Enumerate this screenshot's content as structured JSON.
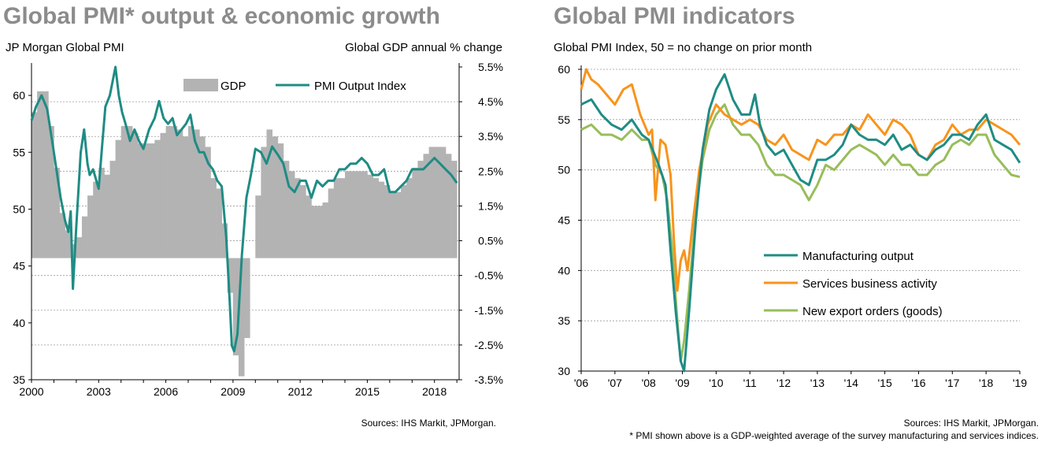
{
  "chart_data": [
    {
      "type": "bar+line",
      "title": "Global PMI* output & economic growth",
      "left_axis_label": "JP Morgan Global  PMI",
      "right_axis_label": "Global  GDP annual % change",
      "source": "Sources: IHS Markit, JPMorgan.",
      "ylim_left": [
        35,
        62.5
      ],
      "yticks_left": [
        "35",
        "40",
        "45",
        "50",
        "55",
        "60"
      ],
      "ylim_right": [
        -3.5,
        5.5
      ],
      "yticks_right": [
        "5.5%",
        "4.5%",
        "3.5%",
        "2.5%",
        "1.5%",
        "0.5%",
        "-0.5%",
        "-1.5%",
        "-2.5%",
        "-3.5%"
      ],
      "x_range": [
        2000,
        2019.1
      ],
      "xticks": [
        "2000",
        "2003",
        "2006",
        "2009",
        "2012",
        "2015",
        "2018"
      ],
      "legend": [
        "GDP",
        "PMI Output Index"
      ],
      "legend_position": "top-right",
      "colors": {
        "gdp": "#b3b3b3",
        "pmi": "#1f8c84"
      },
      "series": [
        {
          "name": "GDP",
          "kind": "bar",
          "x": [
            2000.0,
            2000.25,
            2000.5,
            2000.75,
            2001.0,
            2001.25,
            2001.5,
            2001.75,
            2002.0,
            2002.25,
            2002.5,
            2002.75,
            2003.0,
            2003.25,
            2003.5,
            2003.75,
            2004.0,
            2004.25,
            2004.5,
            2004.75,
            2005.0,
            2005.25,
            2005.5,
            2005.75,
            2006.0,
            2006.25,
            2006.5,
            2006.75,
            2007.0,
            2007.25,
            2007.5,
            2007.75,
            2008.0,
            2008.25,
            2008.5,
            2008.75,
            2009.0,
            2009.25,
            2009.5,
            2009.75,
            2010.0,
            2010.25,
            2010.5,
            2010.75,
            2011.0,
            2011.25,
            2011.5,
            2011.75,
            2012.0,
            2012.25,
            2012.5,
            2012.75,
            2013.0,
            2013.25,
            2013.5,
            2013.75,
            2014.0,
            2014.25,
            2014.5,
            2014.75,
            2015.0,
            2015.25,
            2015.5,
            2015.75,
            2016.0,
            2016.25,
            2016.5,
            2016.75,
            2017.0,
            2017.25,
            2017.5,
            2017.75,
            2018.0,
            2018.25,
            2018.5,
            2018.75
          ],
          "values": [
            4.2,
            4.8,
            4.8,
            3.8,
            2.6,
            1.3,
            0.8,
            0.4,
            0.6,
            1.2,
            1.8,
            2.2,
            2.6,
            2.4,
            2.8,
            3.4,
            3.8,
            3.8,
            3.6,
            3.3,
            3.3,
            3.3,
            3.4,
            3.6,
            3.8,
            3.8,
            3.7,
            3.5,
            3.8,
            3.7,
            3.5,
            3.2,
            2.3,
            2.0,
            1.0,
            -1.0,
            -2.8,
            -3.4,
            -2.3,
            0.0,
            1.8,
            3.2,
            3.7,
            3.5,
            3.3,
            2.8,
            2.5,
            2.3,
            2.1,
            1.8,
            1.5,
            1.5,
            1.6,
            2.0,
            2.3,
            2.3,
            2.5,
            2.5,
            2.5,
            2.5,
            2.4,
            2.3,
            2.2,
            2.1,
            1.9,
            1.9,
            2.1,
            2.3,
            2.6,
            2.8,
            3.0,
            3.2,
            3.2,
            3.2,
            3.0,
            2.8
          ]
        },
        {
          "name": "PMI Output Index",
          "kind": "line",
          "x": [
            2000.0,
            2000.2,
            2000.45,
            2000.7,
            2001.0,
            2001.3,
            2001.5,
            2001.65,
            2001.75,
            2001.85,
            2002.0,
            2002.2,
            2002.35,
            2002.5,
            2002.6,
            2002.75,
            2003.0,
            2003.15,
            2003.3,
            2003.5,
            2003.75,
            2003.9,
            2004.05,
            2004.2,
            2004.4,
            2004.6,
            2004.8,
            2005.0,
            2005.25,
            2005.5,
            2005.7,
            2005.9,
            2006.1,
            2006.3,
            2006.5,
            2006.7,
            2006.9,
            2007.1,
            2007.3,
            2007.5,
            2007.7,
            2007.9,
            2008.1,
            2008.3,
            2008.5,
            2008.7,
            2008.85,
            2008.95,
            2009.05,
            2009.2,
            2009.4,
            2009.6,
            2009.8,
            2010.0,
            2010.25,
            2010.5,
            2010.75,
            2011.0,
            2011.25,
            2011.5,
            2011.75,
            2012.0,
            2012.25,
            2012.5,
            2012.75,
            2013.0,
            2013.25,
            2013.5,
            2013.75,
            2014.0,
            2014.25,
            2014.5,
            2014.75,
            2015.0,
            2015.25,
            2015.5,
            2015.75,
            2016.0,
            2016.25,
            2016.5,
            2016.75,
            2017.0,
            2017.25,
            2017.5,
            2017.75,
            2018.0,
            2018.25,
            2018.5,
            2018.75,
            2019.0
          ],
          "values": [
            57.8,
            59.0,
            60.0,
            58.8,
            55.0,
            51.0,
            49.0,
            48.0,
            49.8,
            43.0,
            48.5,
            55.0,
            57.0,
            54.0,
            53.0,
            53.5,
            51.8,
            55.5,
            59.0,
            60.0,
            62.5,
            60.0,
            58.5,
            57.5,
            56.0,
            57.0,
            56.0,
            55.3,
            57.0,
            58.0,
            59.5,
            58.0,
            57.5,
            58.0,
            56.5,
            57.0,
            57.5,
            58.3,
            56.0,
            55.0,
            55.0,
            54.0,
            53.5,
            52.5,
            52.0,
            47.5,
            42.0,
            38.0,
            37.5,
            39.0,
            46.0,
            51.0,
            53.0,
            55.3,
            55.0,
            54.0,
            55.5,
            54.8,
            54.0,
            52.0,
            51.5,
            52.5,
            52.5,
            51.0,
            52.5,
            52.0,
            52.5,
            52.5,
            53.5,
            53.5,
            54.0,
            54.0,
            54.5,
            54.0,
            53.0,
            53.0,
            53.5,
            51.5,
            51.5,
            52.0,
            52.5,
            53.5,
            53.5,
            53.5,
            54.0,
            54.5,
            54.0,
            53.5,
            53.0,
            52.3
          ]
        }
      ]
    },
    {
      "type": "line",
      "title": "Global PMI indicators",
      "axis_label": "Global  PMI Index, 50 = no change on prior month",
      "source": "Sources: IHS Markit, JPMorgan.",
      "ylim": [
        30,
        60
      ],
      "yticks": [
        "30",
        "35",
        "40",
        "45",
        "50",
        "55",
        "60"
      ],
      "x_range": [
        2006,
        2019
      ],
      "xticks": [
        "'06",
        "'07",
        "'08",
        "'09",
        "'10",
        "'11",
        "'12",
        "'13",
        "'14",
        "'15",
        "'16",
        "'17",
        "'18",
        "'19"
      ],
      "legend_position": "center",
      "colors": {
        "manufacturing": "#1f8c84",
        "services": "#f7941d",
        "exports": "#98bd5a"
      },
      "series": [
        {
          "name": "Manufacturing output",
          "x": [
            2006.0,
            2006.3,
            2006.6,
            2006.9,
            2007.2,
            2007.5,
            2007.8,
            2008.0,
            2008.3,
            2008.5,
            2008.65,
            2008.8,
            2008.95,
            2009.05,
            2009.2,
            2009.4,
            2009.6,
            2009.8,
            2010.0,
            2010.25,
            2010.5,
            2010.75,
            2011.0,
            2011.15,
            2011.3,
            2011.5,
            2011.75,
            2012.0,
            2012.25,
            2012.5,
            2012.75,
            2013.0,
            2013.25,
            2013.5,
            2013.75,
            2014.0,
            2014.25,
            2014.5,
            2014.75,
            2015.0,
            2015.25,
            2015.5,
            2015.75,
            2016.0,
            2016.25,
            2016.5,
            2016.75,
            2017.0,
            2017.25,
            2017.5,
            2017.75,
            2018.0,
            2018.25,
            2018.5,
            2018.75,
            2019.0
          ],
          "values": [
            56.5,
            57.0,
            55.5,
            54.5,
            54.0,
            55.0,
            53.5,
            53.0,
            50.5,
            48.5,
            42.0,
            36.0,
            31.0,
            30.0,
            36.0,
            45.0,
            52.0,
            56.0,
            58.0,
            59.5,
            57.0,
            55.5,
            55.5,
            57.5,
            54.5,
            52.5,
            51.5,
            52.0,
            50.5,
            49.0,
            48.5,
            51.0,
            51.0,
            51.5,
            52.5,
            54.5,
            53.5,
            53.0,
            53.0,
            52.5,
            53.5,
            52.0,
            52.5,
            51.5,
            51.0,
            52.0,
            52.5,
            53.5,
            53.5,
            53.0,
            54.5,
            55.5,
            53.0,
            52.5,
            52.0,
            50.7
          ]
        },
        {
          "name": "Services business activity",
          "x": [
            2006.0,
            2006.15,
            2006.3,
            2006.5,
            2006.75,
            2007.0,
            2007.25,
            2007.5,
            2007.75,
            2008.0,
            2008.1,
            2008.2,
            2008.35,
            2008.5,
            2008.65,
            2008.75,
            2008.85,
            2008.95,
            2009.05,
            2009.15,
            2009.3,
            2009.5,
            2009.75,
            2010.0,
            2010.25,
            2010.5,
            2010.75,
            2011.0,
            2011.25,
            2011.5,
            2011.75,
            2012.0,
            2012.25,
            2012.5,
            2012.75,
            2013.0,
            2013.25,
            2013.5,
            2013.75,
            2014.0,
            2014.25,
            2014.5,
            2014.75,
            2015.0,
            2015.25,
            2015.5,
            2015.75,
            2016.0,
            2016.25,
            2016.5,
            2016.75,
            2017.0,
            2017.25,
            2017.5,
            2017.75,
            2018.0,
            2018.25,
            2018.5,
            2018.75,
            2019.0
          ],
          "values": [
            58.0,
            60.0,
            59.0,
            58.5,
            57.5,
            56.5,
            58.0,
            58.5,
            55.5,
            53.5,
            54.0,
            47.0,
            53.0,
            52.5,
            49.5,
            43.0,
            38.0,
            41.0,
            42.0,
            40.0,
            44.5,
            50.0,
            54.5,
            56.5,
            55.5,
            55.0,
            54.5,
            55.0,
            54.5,
            53.0,
            52.5,
            53.5,
            52.0,
            51.5,
            51.0,
            53.0,
            52.5,
            53.5,
            53.5,
            54.5,
            54.0,
            55.5,
            54.5,
            53.5,
            55.0,
            54.5,
            53.5,
            51.5,
            51.0,
            52.5,
            53.0,
            54.5,
            53.5,
            54.0,
            54.0,
            55.0,
            54.5,
            54.0,
            53.5,
            52.5
          ]
        },
        {
          "name": "New export orders (goods)",
          "x": [
            2006.0,
            2006.3,
            2006.6,
            2006.9,
            2007.2,
            2007.5,
            2007.8,
            2008.0,
            2008.2,
            2008.4,
            2008.55,
            2008.7,
            2008.85,
            2008.95,
            2009.05,
            2009.2,
            2009.4,
            2009.6,
            2009.8,
            2010.0,
            2010.25,
            2010.5,
            2010.75,
            2011.0,
            2011.25,
            2011.5,
            2011.75,
            2012.0,
            2012.25,
            2012.5,
            2012.75,
            2013.0,
            2013.25,
            2013.5,
            2013.75,
            2014.0,
            2014.25,
            2014.5,
            2014.75,
            2015.0,
            2015.25,
            2015.5,
            2015.75,
            2016.0,
            2016.25,
            2016.5,
            2016.75,
            2017.0,
            2017.25,
            2017.5,
            2017.75,
            2018.0,
            2018.25,
            2018.5,
            2018.75,
            2019.0
          ],
          "values": [
            54.0,
            54.5,
            53.5,
            53.5,
            53.0,
            54.0,
            53.0,
            53.0,
            50.5,
            49.5,
            47.0,
            42.0,
            35.0,
            31.0,
            33.0,
            38.0,
            46.0,
            51.0,
            54.0,
            55.5,
            56.5,
            54.5,
            53.5,
            53.5,
            52.5,
            50.5,
            49.5,
            49.5,
            49.0,
            48.5,
            47.0,
            48.5,
            50.5,
            50.0,
            51.0,
            52.0,
            52.5,
            52.0,
            51.5,
            50.5,
            51.5,
            50.5,
            50.5,
            49.5,
            49.5,
            50.5,
            51.0,
            52.5,
            53.0,
            52.5,
            53.5,
            53.5,
            51.5,
            50.5,
            49.5,
            49.3
          ]
        }
      ]
    }
  ],
  "footnote": "* PMI shown above is a GDP-weighted average of the survey manufacturing and services indices."
}
